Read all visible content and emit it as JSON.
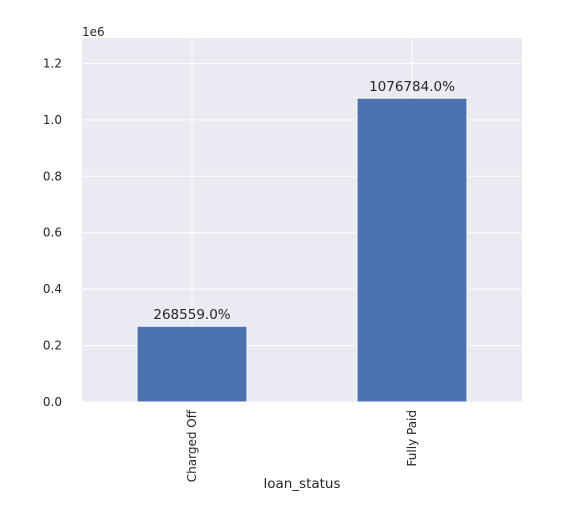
{
  "chart_data": {
    "type": "bar",
    "categories": [
      "Charged Off",
      "Fully Paid"
    ],
    "values": [
      268559.0,
      1076784.0
    ],
    "data_labels": [
      "268559.0%",
      "1076784.0%"
    ],
    "xlabel": "loan_status",
    "ylabel": "",
    "ylim": [
      0,
      1290000
    ],
    "y_ticks": [
      0.0,
      0.2,
      0.4,
      0.6,
      0.8,
      1.0,
      1.2
    ],
    "y_tick_labels": [
      "0.0",
      "0.2",
      "0.4",
      "0.6",
      "0.8",
      "1.0",
      "1.2"
    ],
    "y_tick_scale": 1000000,
    "offset_text": "1e6",
    "grid": true,
    "colors": {
      "bar": "#4c72b0",
      "plot_background": "#eaeaf2",
      "grid": "#ffffff",
      "text": "#262626"
    }
  }
}
